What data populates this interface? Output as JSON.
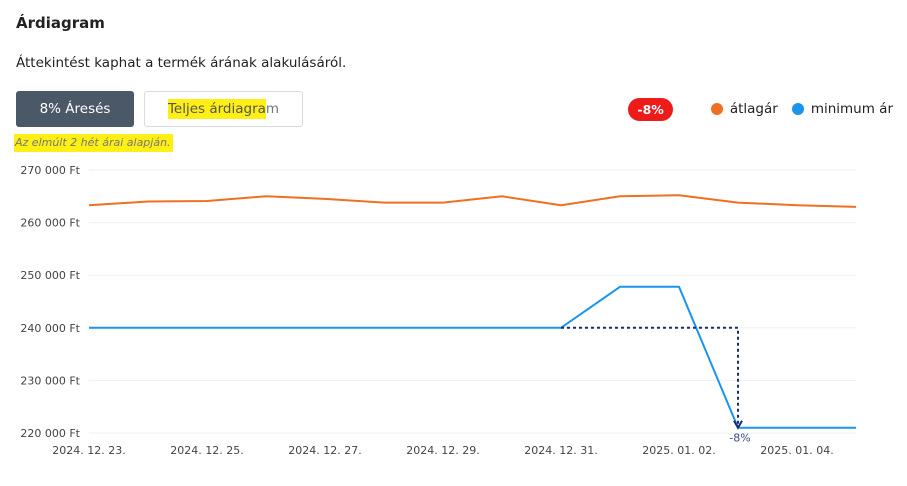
{
  "header": {
    "title": "Árdiagram",
    "subtitle": "Áttekintést kaphat a termék árának alakulásáról."
  },
  "buttons": {
    "drop_label": "8% Áresés",
    "full_chart_highlighted": "Teljes árdiagra",
    "full_chart_rest": "m"
  },
  "note": "Az elmúlt 2 hét árai alapján.",
  "legend": {
    "badge": "-8%",
    "average_label": "átlagár",
    "minimum_label": "minimum ár"
  },
  "colors": {
    "average": "#f07021",
    "minimum": "#1a94ec",
    "badge": "#ee1b1b",
    "annotation": "#1c2a6e"
  },
  "chart_data": {
    "type": "line",
    "x": [
      "2024. 12. 23.",
      "2024. 12. 24.",
      "2024. 12. 25.",
      "2024. 12. 26.",
      "2024. 12. 27.",
      "2024. 12. 28.",
      "2024. 12. 29.",
      "2024. 12. 30.",
      "2024. 12. 31.",
      "2025. 01. 01.",
      "2025. 01. 02.",
      "2025. 01. 03.",
      "2025. 01. 04.",
      "2025. 01. 05."
    ],
    "x_tick_labels": [
      "2024. 12. 23.",
      "2024. 12. 25.",
      "2024. 12. 27.",
      "2024. 12. 29.",
      "2024. 12. 31.",
      "2025. 01. 02.",
      "2025. 01. 04."
    ],
    "y_tick_labels": [
      "220 000 Ft",
      "230 000 Ft",
      "240 000 Ft",
      "250 000 Ft",
      "260 000 Ft",
      "270 000 Ft"
    ],
    "y_ticks": [
      220000,
      230000,
      240000,
      250000,
      260000,
      270000
    ],
    "ylim": [
      220000,
      270000
    ],
    "grid": true,
    "series": [
      {
        "name": "átlagár",
        "values": [
          263300,
          264000,
          264100,
          265000,
          264500,
          263800,
          263800,
          265000,
          263300,
          265000,
          265200,
          263800,
          263300,
          263000
        ]
      },
      {
        "name": "minimum ár",
        "values": [
          240000,
          240000,
          240000,
          240000,
          240000,
          240000,
          240000,
          240000,
          240000,
          247800,
          247800,
          221000,
          221000,
          221000
        ]
      }
    ],
    "annotation": {
      "label": "-8%",
      "from_value": 240000,
      "to_value": 221000,
      "from_date": "2024. 12. 31.",
      "drop_date": "2025. 01. 03."
    }
  }
}
